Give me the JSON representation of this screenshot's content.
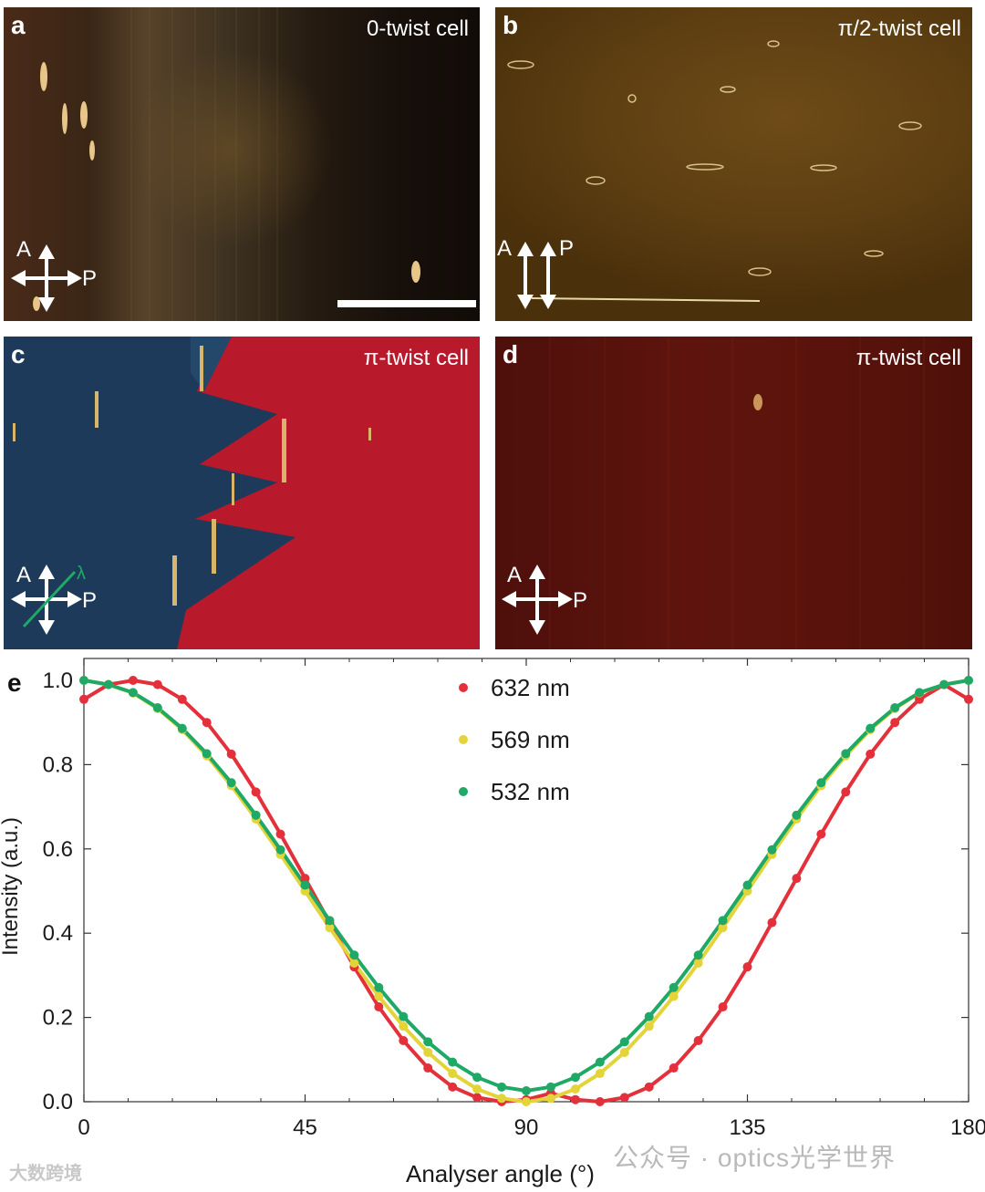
{
  "panels": {
    "a": {
      "letter": "a",
      "title": "0-twist cell",
      "analyser": "A",
      "polariser": "P"
    },
    "b": {
      "letter": "b",
      "title": "π/2-twist cell",
      "analyser": "A",
      "polariser": "P"
    },
    "c": {
      "letter": "c",
      "title": "π-twist cell",
      "analyser": "A",
      "polariser": "P",
      "waveplate": "λ"
    },
    "d": {
      "letter": "d",
      "title": "π-twist cell",
      "analyser": "A",
      "polariser": "P"
    },
    "e": {
      "letter": "e"
    }
  },
  "colors": {
    "red": "#e3303a",
    "yellow": "#e3d43a",
    "green": "#1fa866"
  },
  "watermarks": {
    "left": "大数跨境",
    "right": "公众号 · optics光学世界"
  },
  "chart_data": {
    "type": "scatter",
    "xlabel": "Analyser angle (°)",
    "ylabel": "Intensity (a.u.)",
    "xlim": [
      0,
      180
    ],
    "ylim": [
      0,
      1.0
    ],
    "xticks": [
      0,
      45,
      90,
      135,
      180
    ],
    "yticks": [
      0.0,
      0.2,
      0.4,
      0.6,
      0.8,
      1.0
    ],
    "xtick_labels": [
      "0",
      "45",
      "90",
      "135",
      "180"
    ],
    "ytick_labels": [
      "0.0",
      "0.2",
      "0.4",
      "0.6",
      "0.8",
      "1.0"
    ],
    "legend_position": "top-center",
    "series": [
      {
        "name": "632 nm",
        "color": "#e3303a",
        "min_angle": 102,
        "max_angle": 12,
        "min_value": 0.0,
        "point_spacing": 5,
        "x": [
          0,
          5,
          10,
          15,
          20,
          25,
          30,
          35,
          40,
          45,
          50,
          55,
          60,
          65,
          70,
          75,
          80,
          85,
          90,
          95,
          100,
          105,
          110,
          115,
          120,
          125,
          130,
          135,
          140,
          145,
          150,
          155,
          160,
          165,
          170,
          175,
          180
        ],
        "y": [
          0.955,
          0.99,
          1.0,
          0.99,
          0.955,
          0.9,
          0.825,
          0.735,
          0.635,
          0.53,
          0.425,
          0.32,
          0.225,
          0.145,
          0.08,
          0.035,
          0.01,
          0.0,
          0.005,
          0.02,
          0.005,
          0.0,
          0.01,
          0.035,
          0.08,
          0.145,
          0.225,
          0.32,
          0.425,
          0.53,
          0.635,
          0.735,
          0.825,
          0.9,
          0.955,
          0.99,
          0.955
        ]
      },
      {
        "name": "569 nm",
        "color": "#e3d43a",
        "x": [
          0,
          5,
          10,
          15,
          20,
          25,
          30,
          35,
          40,
          45,
          50,
          55,
          60,
          65,
          70,
          75,
          80,
          85,
          90,
          95,
          100,
          105,
          110,
          115,
          120,
          125,
          130,
          135,
          140,
          145,
          150,
          155,
          160,
          165,
          170,
          175,
          180
        ],
        "y": [
          1.0,
          0.99,
          0.97,
          0.933,
          0.883,
          0.821,
          0.75,
          0.671,
          0.587,
          0.5,
          0.413,
          0.329,
          0.25,
          0.179,
          0.117,
          0.067,
          0.03,
          0.008,
          0.0,
          0.008,
          0.03,
          0.067,
          0.117,
          0.179,
          0.25,
          0.329,
          0.413,
          0.5,
          0.587,
          0.671,
          0.75,
          0.821,
          0.883,
          0.933,
          0.97,
          0.99,
          1.0
        ]
      },
      {
        "name": "532 nm",
        "color": "#1fa866",
        "x": [
          0,
          5,
          10,
          15,
          20,
          25,
          30,
          35,
          40,
          45,
          50,
          55,
          60,
          65,
          70,
          75,
          80,
          85,
          90,
          95,
          100,
          105,
          110,
          115,
          120,
          125,
          130,
          135,
          140,
          145,
          150,
          155,
          160,
          165,
          170,
          175,
          180
        ],
        "y": [
          1.0,
          0.99,
          0.971,
          0.935,
          0.886,
          0.826,
          0.757,
          0.68,
          0.598,
          0.514,
          0.43,
          0.348,
          0.271,
          0.202,
          0.142,
          0.094,
          0.058,
          0.035,
          0.026,
          0.035,
          0.058,
          0.094,
          0.142,
          0.202,
          0.271,
          0.348,
          0.43,
          0.514,
          0.598,
          0.68,
          0.757,
          0.826,
          0.886,
          0.935,
          0.971,
          0.99,
          1.0
        ]
      }
    ]
  }
}
